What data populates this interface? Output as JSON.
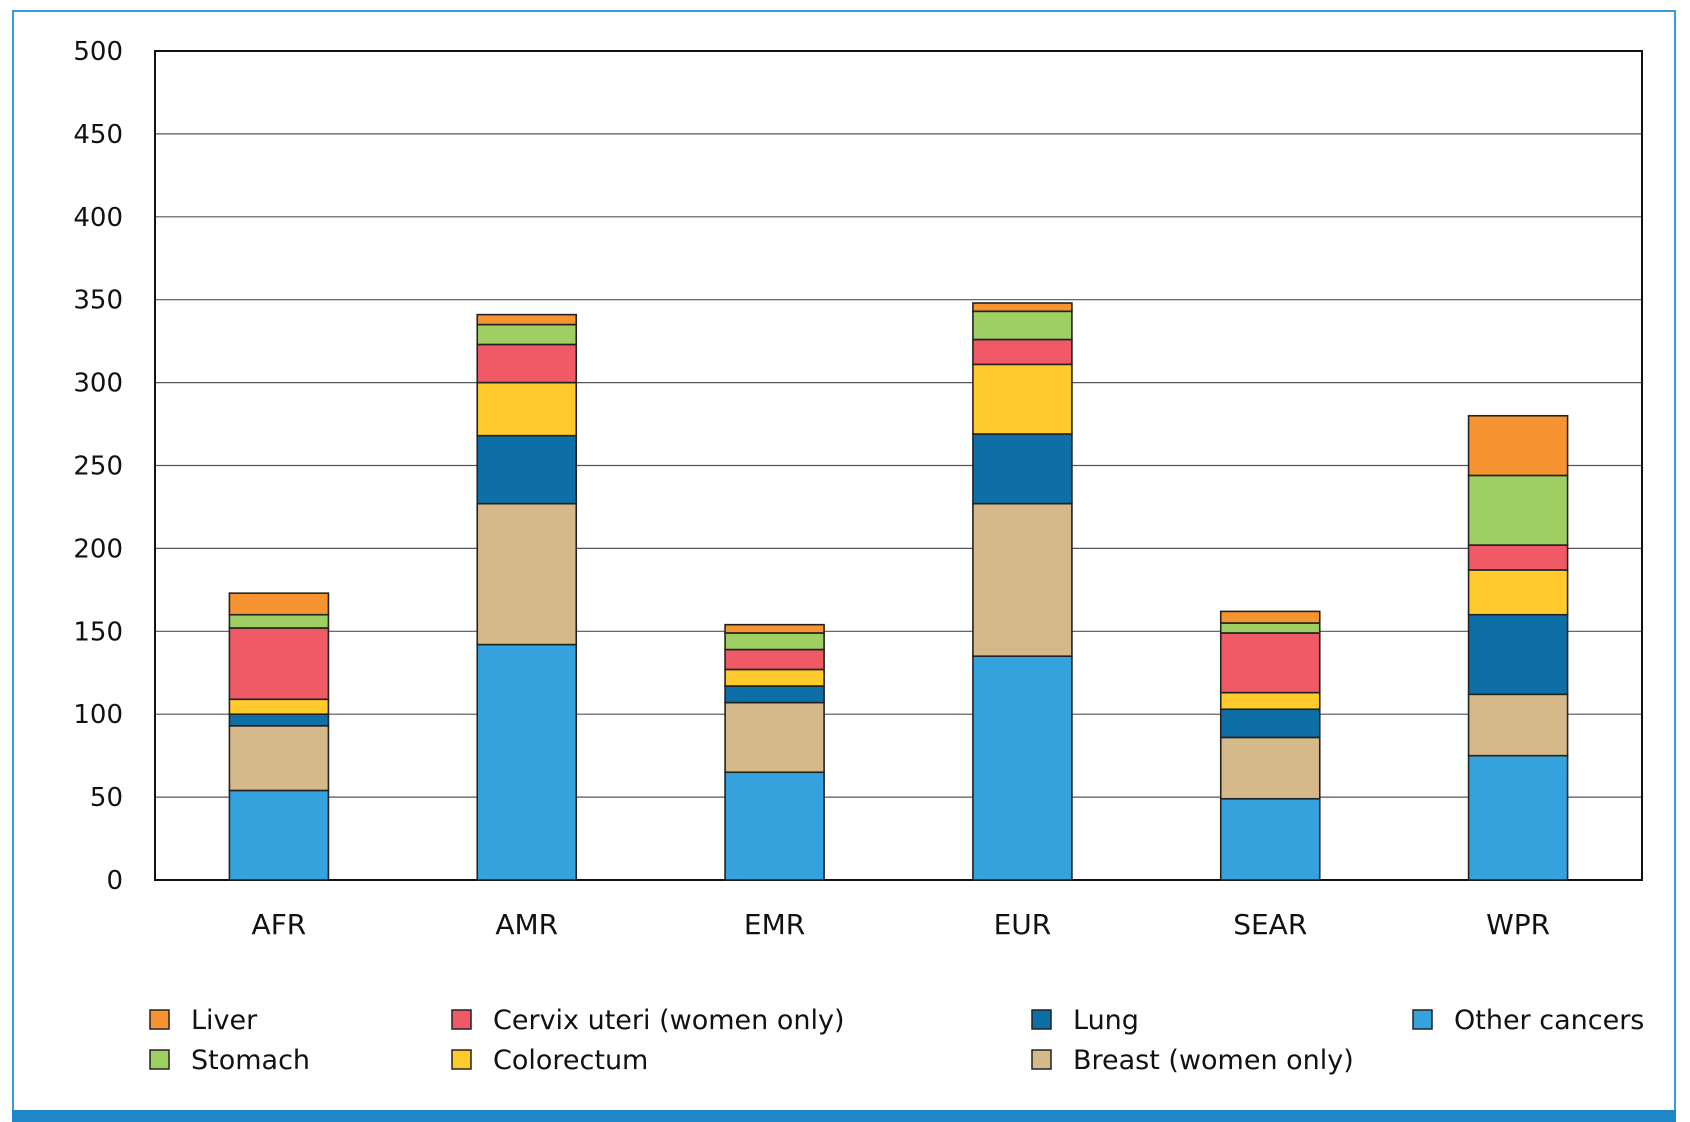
{
  "chart_data": {
    "type": "bar",
    "stacked": true,
    "categories": [
      "AFR",
      "AMR",
      "EMR",
      "EUR",
      "SEAR",
      "WPR"
    ],
    "ylim": [
      0,
      500
    ],
    "yticks": [
      0,
      50,
      100,
      150,
      200,
      250,
      300,
      350,
      400,
      450,
      500
    ],
    "grid": true,
    "series": [
      {
        "name": "Other cancers",
        "color": "#33a2dd",
        "values": [
          54,
          142,
          65,
          135,
          49,
          75
        ]
      },
      {
        "name": "Breast (women only)",
        "color": "#d6b98a",
        "values": [
          39,
          85,
          42,
          92,
          37,
          37
        ]
      },
      {
        "name": "Lung",
        "color": "#0e6fa6",
        "values": [
          7,
          41,
          10,
          42,
          17,
          48
        ]
      },
      {
        "name": "Colorectum",
        "color": "#ffca2c",
        "values": [
          9,
          32,
          10,
          42,
          10,
          27
        ]
      },
      {
        "name": "Cervix uteri (women only)",
        "color": "#ef5a66",
        "values": [
          43,
          23,
          12,
          15,
          36,
          15
        ]
      },
      {
        "name": "Stomach",
        "color": "#9fcf62",
        "values": [
          8,
          12,
          10,
          17,
          6,
          42
        ]
      },
      {
        "name": "Liver",
        "color": "#f69431",
        "values": [
          13,
          6,
          5,
          5,
          7,
          36
        ]
      }
    ],
    "legend_order": [
      "Liver",
      "Stomach",
      "Cervix uteri (women only)",
      "Colorectum",
      "Lung",
      "Breast (women only)",
      "Other cancers"
    ],
    "legend_position": "bottom"
  }
}
